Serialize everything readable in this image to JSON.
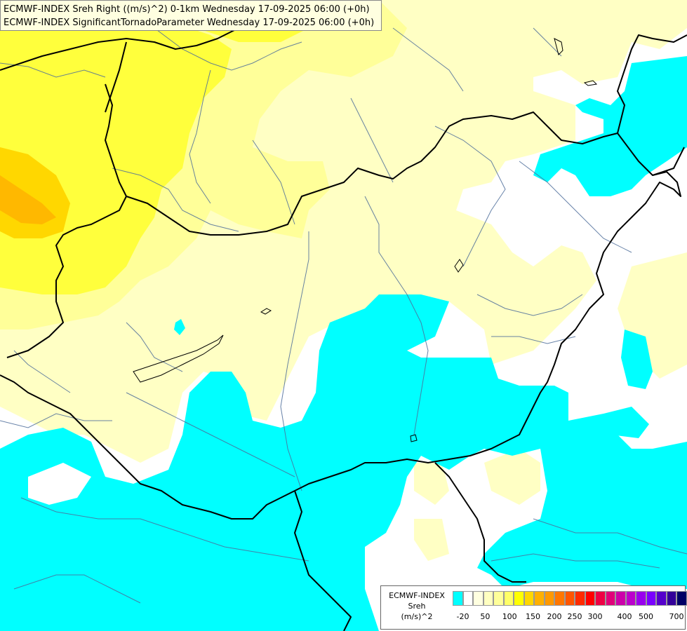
{
  "header": {
    "line1": "ECMWF-INDEX Sreh Right ((m/s)^2) 0-1km Wednesday 17-09-2025 06:00 (+0h)",
    "line2": "ECMWF-INDEX SignificantTornadoParameter Wednesday 17-09-2025 06:00 (+0h)"
  },
  "legend": {
    "line1": "ECMWF-INDEX",
    "line2": "Sreh",
    "line3": "(m/s)^2",
    "tick_labels": [
      "-20",
      "50",
      "100",
      "150",
      "200",
      "250",
      "300",
      "400",
      "500",
      "700"
    ],
    "colors": [
      "#00ffff",
      "#ffffff",
      "#ffffe0",
      "#ffffc0",
      "#ffff99",
      "#ffff66",
      "#ffff00",
      "#ffd700",
      "#ffb000",
      "#ff9900",
      "#ff7700",
      "#ff5500",
      "#ff2a00",
      "#ff0000",
      "#ee0044",
      "#e0007a",
      "#cc00aa",
      "#bb00cc",
      "#9900ee",
      "#7a00ff",
      "#5500cc",
      "#330099",
      "#000066"
    ]
  },
  "map_colors": {
    "cyan": "#00ffff",
    "pale_yellow": "#ffffc4",
    "light_yellow": "#ffff99",
    "yellow": "#ffff3c",
    "orange": "#ffd700",
    "dark_orange": "#ffb800",
    "border": "#000000",
    "river": "#4d6d9a"
  }
}
